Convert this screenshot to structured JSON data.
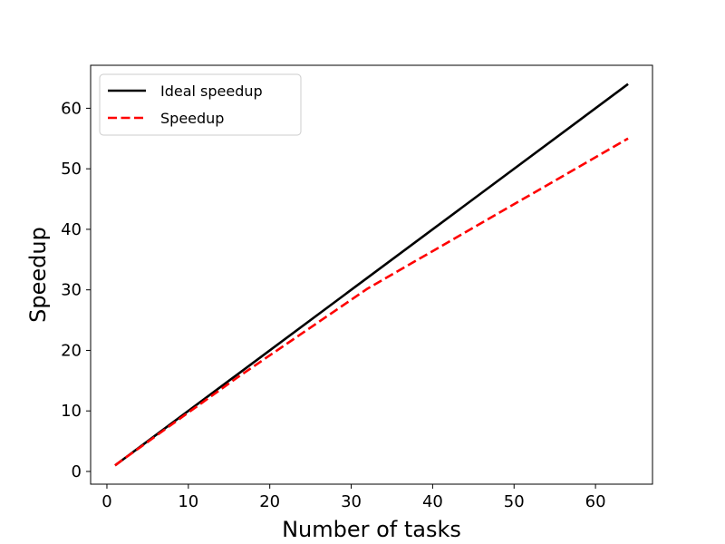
{
  "chart_data": {
    "type": "line",
    "title": "",
    "xlabel": "Number of tasks",
    "ylabel": "Speedup",
    "xlim": [
      -2,
      67
    ],
    "ylim": [
      -2.1,
      67.1
    ],
    "xticks": [
      0,
      10,
      20,
      30,
      40,
      50,
      60
    ],
    "yticks": [
      0,
      10,
      20,
      30,
      40,
      50,
      60
    ],
    "grid": false,
    "legend_position": "upper left",
    "series": [
      {
        "name": "Ideal speedup",
        "color": "#000000",
        "line_style": "solid",
        "x": [
          1,
          2,
          4,
          8,
          16,
          32,
          64
        ],
        "y": [
          1,
          2,
          4,
          8,
          16,
          32,
          64
        ]
      },
      {
        "name": "Speedup",
        "color": "#ff0000",
        "line_style": "dashed",
        "x": [
          1,
          2,
          4,
          8,
          16,
          32,
          64
        ],
        "y": [
          1,
          2,
          3.9,
          7.8,
          15.5,
          30.2,
          55
        ]
      }
    ]
  }
}
